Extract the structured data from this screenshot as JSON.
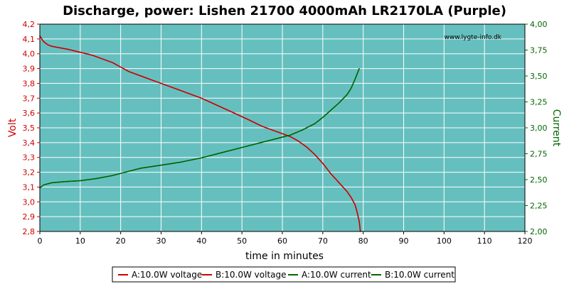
{
  "colors": {
    "plot_bg": "#66bfbf",
    "grid": "#ffffff",
    "voltage": "#cc0000",
    "current": "#006600",
    "axis": "#000000"
  },
  "chart_data": {
    "type": "line",
    "title": "Discharge, power: Lishen 21700 4000mAh LR2170LA (Purple)",
    "watermark": "www.lygte-info.dk",
    "xlabel": "time in minutes",
    "ylabel_left": "Volt",
    "ylabel_right": "Current",
    "xlim": [
      0,
      120
    ],
    "ylim_left": [
      2.8,
      4.2
    ],
    "ylim_right": [
      2.0,
      4.0
    ],
    "x_ticks": [
      0,
      10,
      20,
      30,
      40,
      50,
      60,
      70,
      80,
      90,
      100,
      110,
      120
    ],
    "x_tick_labels": [
      "0",
      "10",
      "20",
      "30",
      "40",
      "50",
      "60",
      "70",
      "80",
      "90",
      "100",
      "110",
      "120"
    ],
    "y_left_ticks": [
      2.8,
      2.9,
      3.0,
      3.1,
      3.2,
      3.3,
      3.4,
      3.5,
      3.6,
      3.7,
      3.8,
      3.9,
      4.0,
      4.1,
      4.2
    ],
    "y_left_tick_labels": [
      "2,8",
      "2,9",
      "3,0",
      "3,1",
      "3,2",
      "3,3",
      "3,4",
      "3,5",
      "3,6",
      "3,7",
      "3,8",
      "3,9",
      "4,0",
      "4,1",
      "4,2"
    ],
    "y_right_ticks": [
      2.0,
      2.25,
      2.5,
      2.75,
      3.0,
      3.25,
      3.5,
      3.75,
      4.0
    ],
    "y_right_tick_labels": [
      "2,00",
      "2,25",
      "2,50",
      "2,75",
      "3,00",
      "3,25",
      "3,50",
      "3,75",
      "4,00"
    ],
    "grid": true,
    "legend_placement": "bottom",
    "series": [
      {
        "name": "A:10.0W voltage",
        "axis": "left",
        "color": "#cc0000",
        "x": [
          0,
          0.5,
          1,
          2,
          3,
          5,
          7,
          10,
          13,
          16,
          18,
          20,
          22,
          25,
          28,
          30,
          33,
          36,
          40,
          44,
          48,
          52,
          55,
          58,
          60,
          62,
          64,
          66,
          68,
          70,
          72,
          74,
          76,
          77,
          78,
          78.5,
          79,
          79.3
        ],
        "y": [
          4.12,
          4.1,
          4.08,
          4.06,
          4.05,
          4.04,
          4.03,
          4.01,
          3.99,
          3.96,
          3.94,
          3.91,
          3.88,
          3.85,
          3.82,
          3.8,
          3.77,
          3.74,
          3.7,
          3.65,
          3.6,
          3.55,
          3.51,
          3.48,
          3.46,
          3.44,
          3.41,
          3.37,
          3.32,
          3.26,
          3.19,
          3.13,
          3.07,
          3.03,
          2.98,
          2.93,
          2.87,
          2.8
        ]
      },
      {
        "name": "B:10.0W voltage",
        "axis": "left",
        "color": "#cc0000",
        "x": [
          0,
          0.5,
          1,
          2,
          3,
          5,
          7,
          10,
          13,
          16,
          18,
          20,
          22,
          25,
          28,
          30,
          33,
          36,
          40,
          44,
          48,
          52,
          55,
          58,
          60,
          62,
          64,
          66,
          68,
          70,
          72,
          74,
          76,
          77,
          78,
          78.5,
          79,
          79.3
        ],
        "y": [
          4.12,
          4.1,
          4.08,
          4.06,
          4.05,
          4.04,
          4.03,
          4.01,
          3.99,
          3.96,
          3.94,
          3.91,
          3.88,
          3.85,
          3.82,
          3.8,
          3.77,
          3.74,
          3.7,
          3.65,
          3.6,
          3.55,
          3.51,
          3.48,
          3.46,
          3.44,
          3.41,
          3.37,
          3.32,
          3.26,
          3.19,
          3.13,
          3.07,
          3.03,
          2.98,
          2.93,
          2.87,
          2.8
        ]
      },
      {
        "name": "A:10.0W current",
        "axis": "right",
        "color": "#006600",
        "x": [
          0,
          1,
          3,
          6,
          10,
          14,
          18,
          20,
          25,
          30,
          35,
          40,
          45,
          50,
          55,
          58,
          60,
          62,
          65,
          68,
          70,
          72,
          74,
          76,
          77,
          78,
          79
        ],
        "y": [
          2.42,
          2.45,
          2.47,
          2.48,
          2.49,
          2.51,
          2.54,
          2.56,
          2.61,
          2.64,
          2.67,
          2.71,
          2.76,
          2.81,
          2.86,
          2.89,
          2.91,
          2.93,
          2.98,
          3.04,
          3.1,
          3.17,
          3.24,
          3.32,
          3.38,
          3.47,
          3.57
        ]
      },
      {
        "name": "B:10.0W current",
        "axis": "right",
        "color": "#006600",
        "x": [
          0,
          1,
          3,
          6,
          10,
          14,
          18,
          20,
          25,
          30,
          35,
          40,
          45,
          50,
          55,
          58,
          60,
          62,
          65,
          68,
          70,
          72,
          74,
          76,
          77,
          78,
          79
        ],
        "y": [
          2.42,
          2.45,
          2.47,
          2.48,
          2.49,
          2.51,
          2.54,
          2.56,
          2.61,
          2.64,
          2.67,
          2.71,
          2.76,
          2.81,
          2.86,
          2.89,
          2.91,
          2.93,
          2.98,
          3.04,
          3.1,
          3.17,
          3.24,
          3.32,
          3.38,
          3.47,
          3.57
        ]
      }
    ]
  }
}
